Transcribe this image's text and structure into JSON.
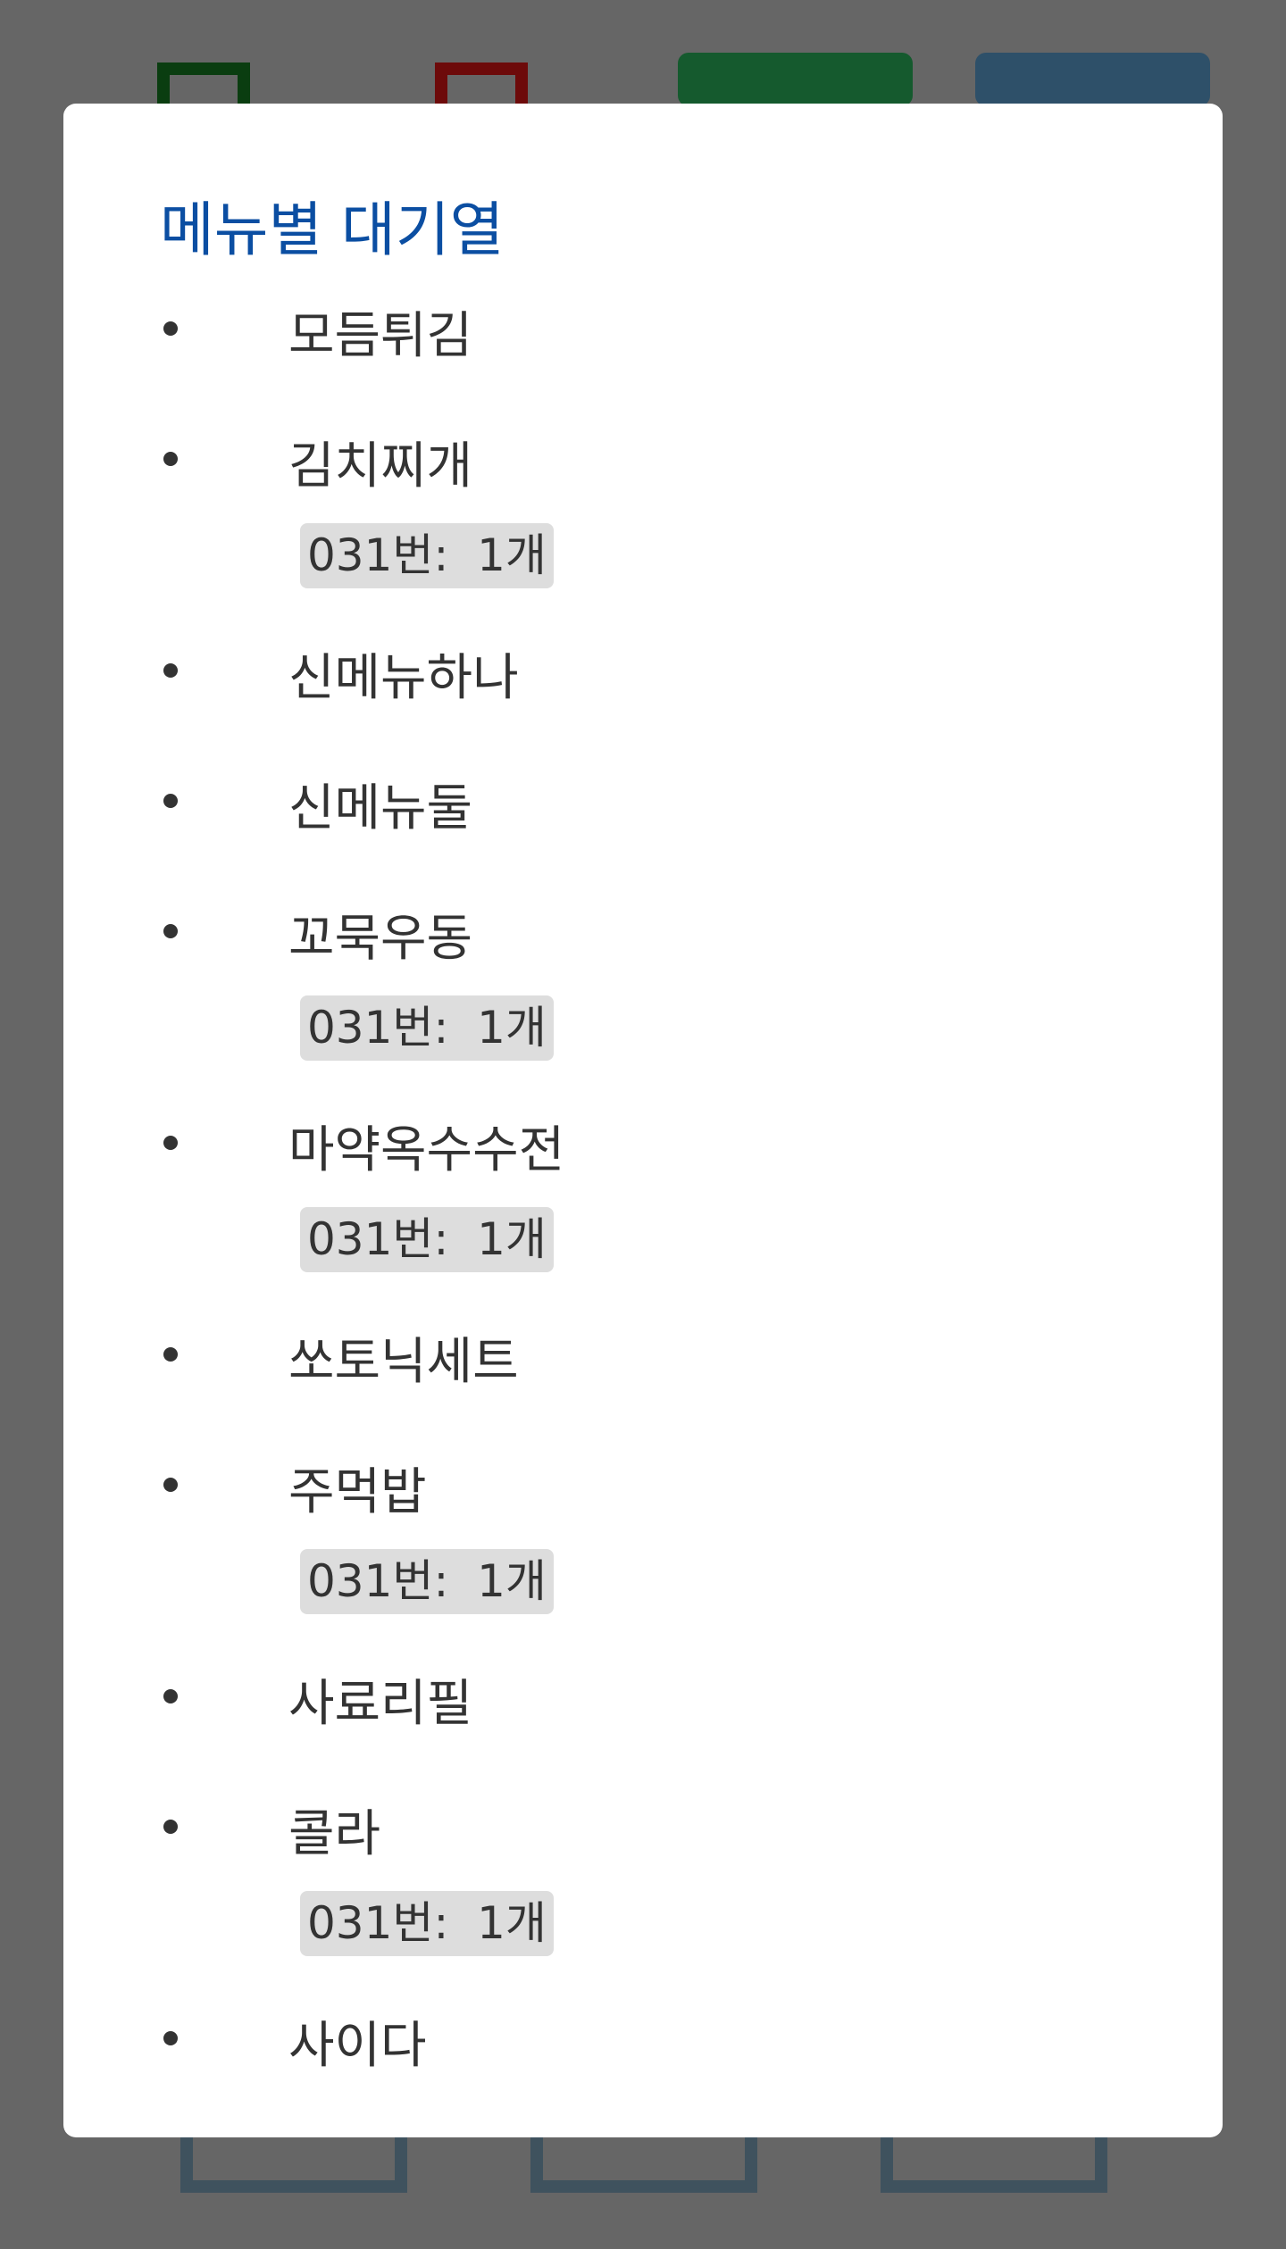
{
  "background": {
    "green_button_label": "",
    "blue_button_label": ""
  },
  "modal": {
    "title": "메뉴별 대기열",
    "items": [
      {
        "name": "모듬튀김",
        "orders": []
      },
      {
        "name": "김치찌개",
        "orders": [
          {
            "order": "031번",
            "qty": "1개"
          }
        ]
      },
      {
        "name": "신메뉴하나",
        "orders": []
      },
      {
        "name": "신메뉴둘",
        "orders": []
      },
      {
        "name": "꼬묵우동",
        "orders": [
          {
            "order": "031번",
            "qty": "1개"
          }
        ]
      },
      {
        "name": "마약옥수수전",
        "orders": [
          {
            "order": "031번",
            "qty": "1개"
          }
        ]
      },
      {
        "name": "쏘토닉세트",
        "orders": []
      },
      {
        "name": "주먹밥",
        "orders": [
          {
            "order": "031번",
            "qty": "1개"
          }
        ]
      },
      {
        "name": "사료리필",
        "orders": []
      },
      {
        "name": "콜라",
        "orders": [
          {
            "order": "031번",
            "qty": "1개"
          }
        ]
      },
      {
        "name": "사이다",
        "orders": []
      }
    ]
  }
}
